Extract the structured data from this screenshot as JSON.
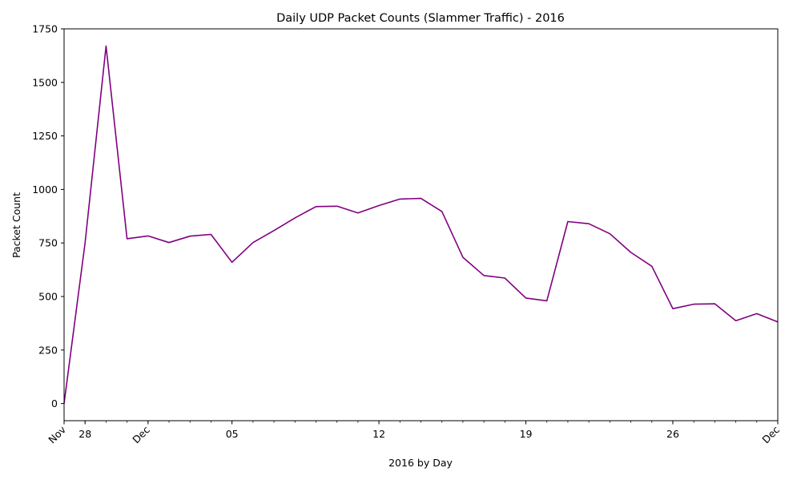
{
  "chart_data": {
    "type": "line",
    "title": "Daily UDP Packet Counts (Slammer Traffic) - 2016",
    "xlabel": "2016 by Day",
    "ylabel": "Packet Count",
    "line_color": "#800080",
    "x_range": [
      "2016-11-26",
      "2016-12-30"
    ],
    "ylim": [
      -80,
      1750
    ],
    "y_ticks": [
      0,
      250,
      500,
      750,
      1000,
      1250,
      1500,
      1750
    ],
    "x_tick_labels": [
      {
        "date": "2016-11-26",
        "label": "Nov",
        "rotated": true
      },
      {
        "date": "2016-11-27",
        "label": "28",
        "rotated": false
      },
      {
        "date": "2016-11-30",
        "label": "Dec",
        "rotated": true
      },
      {
        "date": "2016-12-04",
        "label": "05",
        "rotated": false
      },
      {
        "date": "2016-12-11",
        "label": "12",
        "rotated": false
      },
      {
        "date": "2016-12-18",
        "label": "19",
        "rotated": false
      },
      {
        "date": "2016-12-25",
        "label": "26",
        "rotated": false
      },
      {
        "date": "2016-12-30",
        "label": "Dec",
        "rotated": true
      }
    ],
    "series": [
      {
        "x": [
          "2016-11-26",
          "2016-11-27",
          "2016-11-28",
          "2016-11-29",
          "2016-11-30",
          "2016-12-01",
          "2016-12-02",
          "2016-12-03",
          "2016-12-04",
          "2016-12-05",
          "2016-12-06",
          "2016-12-07",
          "2016-12-08",
          "2016-12-09",
          "2016-12-10",
          "2016-12-11",
          "2016-12-12",
          "2016-12-13",
          "2016-12-14",
          "2016-12-15",
          "2016-12-16",
          "2016-12-17",
          "2016-12-18",
          "2016-12-19",
          "2016-12-20",
          "2016-12-21",
          "2016-12-22",
          "2016-12-23",
          "2016-12-24",
          "2016-12-25",
          "2016-12-26",
          "2016-12-27",
          "2016-12-28",
          "2016-12-29",
          "2016-12-30"
        ],
        "values": [
          0,
          750,
          1670,
          770,
          783,
          752,
          782,
          790,
          660,
          752,
          808,
          867,
          920,
          922,
          890,
          925,
          955,
          958,
          897,
          683,
          598,
          586,
          493,
          480,
          850,
          840,
          793,
          706,
          641,
          443,
          464,
          466,
          387,
          420,
          381
        ]
      }
    ]
  }
}
